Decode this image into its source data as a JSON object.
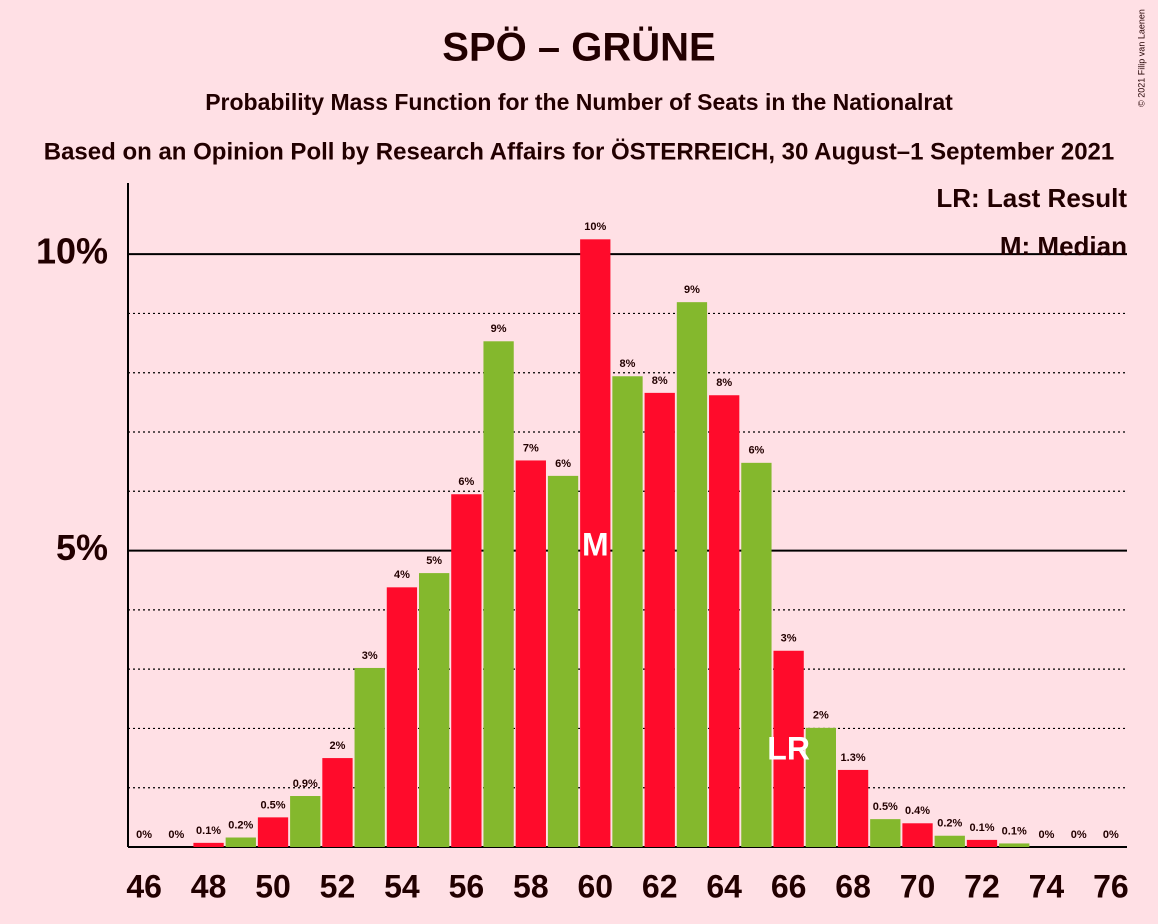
{
  "chart_data": {
    "type": "bar",
    "title": "SPÖ – GRÜNE",
    "subtitle": "Probability Mass Function for the Number of Seats in the Nationalrat",
    "caption": "Based on an Opinion Poll by Research Affairs for ÖSTERREICH, 30 August–1 September 2021",
    "copyright": "© 2021 Filip van Laenen",
    "categories": [
      46,
      null,
      48,
      null,
      50,
      null,
      52,
      null,
      54,
      null,
      56,
      null,
      58,
      null,
      60,
      null,
      62,
      null,
      64,
      null,
      66,
      null,
      68,
      null,
      70,
      null,
      72,
      null,
      74,
      null,
      76
    ],
    "values": [
      0,
      0,
      0.07,
      0.16,
      0.5,
      0.86,
      1.5,
      3.02,
      4.38,
      4.62,
      5.95,
      8.53,
      6.52,
      6.26,
      10.25,
      7.94,
      7.66,
      9.19,
      7.62,
      6.48,
      3.31,
      2.01,
      1.3,
      0.47,
      0.4,
      0.19,
      0.12,
      0.06,
      0,
      0,
      0
    ],
    "value_labels": [
      "0%",
      "0%",
      "0.1%",
      "0.2%",
      "0.5%",
      "0.9%",
      "2%",
      "3%",
      "4%",
      "5%",
      "6%",
      "9%",
      "7%",
      "6%",
      "10%",
      "8%",
      "8%",
      "9%",
      "8%",
      "6%",
      "3%",
      "2%",
      "1.3%",
      "0.5%",
      "0.4%",
      "0.2%",
      "0.1%",
      "0.1%",
      "0%",
      "0%",
      "0%"
    ],
    "colors": [
      "#ff0b2b",
      "#84b82d"
    ],
    "ylim": [
      0,
      11.2
    ],
    "yticks": [
      {
        "value": 5,
        "label": "5%"
      },
      {
        "value": 10,
        "label": "10%"
      }
    ],
    "minor_yticks": [
      1,
      2,
      3,
      4,
      6,
      7,
      8,
      9
    ],
    "grid": true,
    "annotations": [
      {
        "text": "M",
        "x": 60
      },
      {
        "text": "LR",
        "x": 66
      }
    ],
    "legend": [
      "LR: Last Result",
      "M: Median"
    ],
    "legend_position": "upper right"
  }
}
